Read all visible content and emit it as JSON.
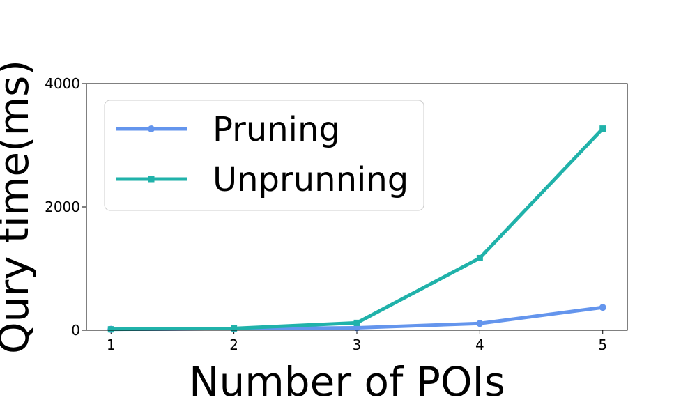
{
  "chart_data": {
    "type": "line",
    "title": "",
    "xlabel": "Number of POIs",
    "ylabel": "Qury time(ms)",
    "x": [
      1,
      2,
      3,
      4,
      5
    ],
    "xlim": [
      0.8,
      5.2
    ],
    "ylim": [
      0,
      4000
    ],
    "yticks": [
      0,
      2000,
      4000
    ],
    "grid": false,
    "legend_position": "upper-left",
    "series": [
      {
        "name": "Pruning",
        "values": [
          15,
          25,
          40,
          110,
          370
        ],
        "color": "#6495ED",
        "marker": "circle"
      },
      {
        "name": "Unprunning",
        "values": [
          15,
          30,
          120,
          1170,
          3270
        ],
        "color": "#20B2AA",
        "marker": "square"
      }
    ]
  }
}
